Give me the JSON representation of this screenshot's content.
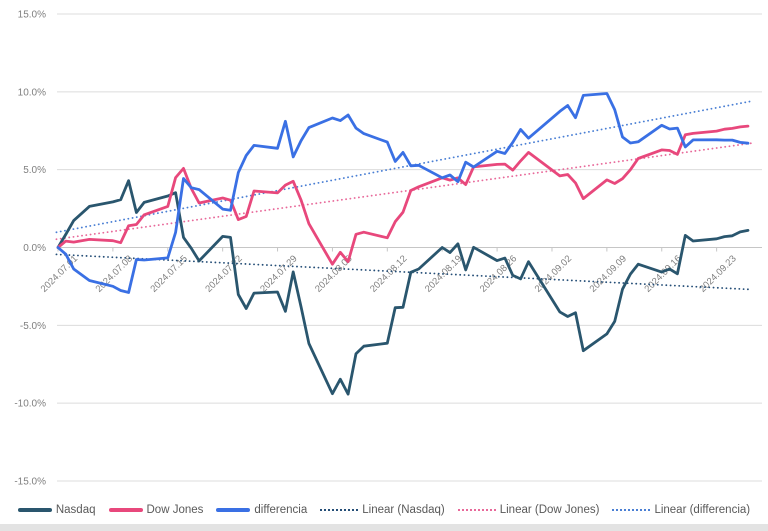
{
  "chart_data": {
    "type": "line",
    "title": "",
    "legend_position": "bottom",
    "grid": "horizontal",
    "style": {
      "background": "#ffffff",
      "gridline_color": "#dcdcdc",
      "axis_line_color": "#c6c6c6",
      "axis_label_color": "#7f7f7f",
      "legend_text_color": "#595959",
      "bottom_bar_color": "#e3e3e3"
    },
    "y_axis": {
      "min": -15,
      "max": 15,
      "step": 5,
      "unit": "%",
      "ticks": [
        {
          "value": 15,
          "label": "15.0%"
        },
        {
          "value": 10,
          "label": "10.0%"
        },
        {
          "value": 5,
          "label": "5.0%"
        },
        {
          "value": 0,
          "label": "0.0%"
        },
        {
          "value": -5,
          "label": "-5.0%"
        },
        {
          "value": -10,
          "label": "-10.0%"
        },
        {
          "value": -15,
          "label": "-15.0%"
        }
      ]
    },
    "x_axis": {
      "ticks": [
        {
          "day": 0,
          "label": "2024.07.01"
        },
        {
          "day": 7,
          "label": "2024.07.08"
        },
        {
          "day": 14,
          "label": "2024.07.15"
        },
        {
          "day": 21,
          "label": "2024.07.22"
        },
        {
          "day": 28,
          "label": "2024.07.29"
        },
        {
          "day": 35,
          "label": "2024.08.05"
        },
        {
          "day": 42,
          "label": "2024.08.12"
        },
        {
          "day": 49,
          "label": "2024.08.19"
        },
        {
          "day": 56,
          "label": "2024.08.26"
        },
        {
          "day": 63,
          "label": "2024.09.02"
        },
        {
          "day": 70,
          "label": "2024.09.09"
        },
        {
          "day": 77,
          "label": "2024.09.16"
        },
        {
          "day": 84,
          "label": "2024.09.23"
        }
      ]
    },
    "dates": [
      "2024.07.01",
      "2024.07.02",
      "2024.07.03",
      "2024.07.05",
      "2024.07.08",
      "2024.07.09",
      "2024.07.10",
      "2024.07.11",
      "2024.07.12",
      "2024.07.15",
      "2024.07.16",
      "2024.07.17",
      "2024.07.18",
      "2024.07.19",
      "2024.07.22",
      "2024.07.23",
      "2024.07.24",
      "2024.07.25",
      "2024.07.26",
      "2024.07.29",
      "2024.07.30",
      "2024.07.31",
      "2024.08.01",
      "2024.08.02",
      "2024.08.05",
      "2024.08.06",
      "2024.08.07",
      "2024.08.08",
      "2024.08.09",
      "2024.08.12",
      "2024.08.13",
      "2024.08.14",
      "2024.08.15",
      "2024.08.16",
      "2024.08.19",
      "2024.08.20",
      "2024.08.21",
      "2024.08.22",
      "2024.08.23",
      "2024.08.26",
      "2024.08.27",
      "2024.08.28",
      "2024.08.29",
      "2024.08.30",
      "2024.09.03",
      "2024.09.04",
      "2024.09.05",
      "2024.09.06",
      "2024.09.09",
      "2024.09.10",
      "2024.09.11",
      "2024.09.12",
      "2024.09.13",
      "2024.09.16",
      "2024.09.17",
      "2024.09.18",
      "2024.09.19",
      "2024.09.20",
      "2024.09.23",
      "2024.09.24",
      "2024.09.25",
      "2024.09.26",
      "2024.09.27"
    ],
    "day_offsets": [
      0,
      1,
      2,
      4,
      7,
      8,
      9,
      10,
      11,
      14,
      15,
      16,
      17,
      18,
      21,
      22,
      23,
      24,
      25,
      28,
      29,
      30,
      31,
      32,
      35,
      36,
      37,
      38,
      39,
      42,
      43,
      44,
      45,
      46,
      49,
      50,
      51,
      52,
      53,
      56,
      57,
      58,
      59,
      60,
      64,
      65,
      66,
      67,
      70,
      71,
      72,
      73,
      74,
      77,
      78,
      79,
      80,
      81,
      84,
      85,
      86,
      87,
      88
    ],
    "series": [
      {
        "name": "Nasdaq",
        "color": "#2a566e",
        "values": [
          0.0,
          0.84,
          1.73,
          2.64,
          2.93,
          3.07,
          4.29,
          2.25,
          2.9,
          3.31,
          3.52,
          0.65,
          -0.05,
          -0.86,
          0.71,
          0.65,
          -3.02,
          -3.92,
          -2.93,
          -2.86,
          -4.1,
          -1.57,
          -3.83,
          -6.17,
          -9.39,
          -8.46,
          -9.42,
          -6.82,
          -6.34,
          -6.15,
          -3.87,
          -3.84,
          -1.59,
          -1.38,
          0.0,
          -0.33,
          0.24,
          -1.44,
          0.01,
          -0.84,
          -0.68,
          -1.79,
          -2.02,
          -0.91,
          -4.14,
          -4.43,
          -4.19,
          -6.63,
          -5.55,
          -4.75,
          -2.68,
          -1.71,
          -1.07,
          -1.58,
          -1.38,
          -1.69,
          0.78,
          0.42,
          0.56,
          0.7,
          0.75,
          1.0,
          1.1
        ]
      },
      {
        "name": "Dow Jones",
        "color": "#e8487c",
        "values": [
          0.0,
          0.41,
          0.35,
          0.52,
          0.44,
          0.31,
          1.4,
          1.48,
          2.1,
          2.64,
          4.49,
          5.08,
          3.79,
          2.86,
          3.18,
          3.04,
          1.79,
          1.99,
          3.63,
          3.51,
          4.01,
          4.25,
          3.04,
          1.53,
          -1.07,
          -0.31,
          -0.91,
          0.85,
          0.98,
          0.62,
          1.66,
          2.27,
          3.66,
          3.9,
          4.48,
          4.33,
          4.47,
          4.04,
          5.18,
          5.34,
          5.36,
          4.97,
          5.56,
          6.11,
          4.6,
          4.69,
          4.15,
          3.14,
          4.34,
          4.11,
          4.42,
          5.0,
          5.72,
          6.27,
          6.23,
          5.98,
          7.24,
          7.33,
          7.48,
          7.6,
          7.65,
          7.75,
          7.8
        ]
      },
      {
        "name": "differencia",
        "color": "#3a70e4",
        "values": [
          0.0,
          -0.43,
          -1.38,
          -2.12,
          -2.49,
          -2.76,
          -2.89,
          -0.77,
          -0.8,
          -0.67,
          0.97,
          4.43,
          3.84,
          3.72,
          2.47,
          2.39,
          4.81,
          5.91,
          6.56,
          6.37,
          8.11,
          5.82,
          6.87,
          7.7,
          8.32,
          8.15,
          8.51,
          7.67,
          7.32,
          6.77,
          5.53,
          6.11,
          5.25,
          5.28,
          4.48,
          4.66,
          4.23,
          5.48,
          5.17,
          6.18,
          6.04,
          6.76,
          7.58,
          7.02,
          8.74,
          9.12,
          8.34,
          9.77,
          9.89,
          8.86,
          7.1,
          6.71,
          6.79,
          7.85,
          7.61,
          7.67,
          6.46,
          6.91,
          6.92,
          6.9,
          6.9,
          6.75,
          6.7
        ]
      }
    ],
    "trendlines": [
      {
        "name": "Linear (Nasdaq)",
        "source": "Nasdaq",
        "color": "#254e77"
      },
      {
        "name": "Linear (Dow Jones)",
        "source": "Dow Jones",
        "color": "#e8699a"
      },
      {
        "name": "Linear (differencia)",
        "source": "differencia",
        "color": "#4a7fd4"
      }
    ]
  }
}
